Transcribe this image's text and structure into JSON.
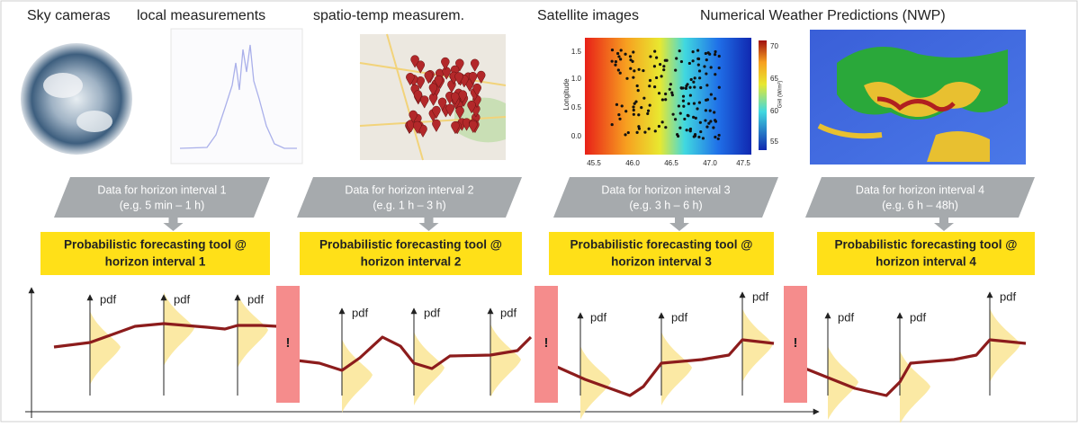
{
  "sources": [
    "Sky cameras",
    "local measurements",
    "spatio-temp measurem.",
    "Satellite images",
    "Numerical Weather Predictions (NWP)"
  ],
  "satellite": {
    "y_label": "Longitude",
    "x_ticks": [
      "45.5",
      "46.0",
      "46.5",
      "47.0",
      "47.5"
    ],
    "y_ticks": [
      "0.0",
      "0.5",
      "1.0",
      "1.5"
    ],
    "colorbar_ticks": [
      "55",
      "60",
      "65",
      "70"
    ],
    "colorbar_label": "GHI (W/m²)"
  },
  "data_boxes": [
    {
      "line1": "Data for horizon interval 1",
      "line2": "(e.g. 5 min – 1 h)"
    },
    {
      "line1": "Data for horizon interval 2",
      "line2": "(e.g. 1 h – 3 h)"
    },
    {
      "line1": "Data for horizon interval 3",
      "line2": "(e.g. 3 h – 6 h)"
    },
    {
      "line1": "Data for horizon interval 4",
      "line2": "(e.g. 6 h – 48h)"
    }
  ],
  "tool_boxes": [
    {
      "line1": "Probabilistic forecasting tool @",
      "line2": "horizon interval 1"
    },
    {
      "line1": "Probabilistic forecasting tool @",
      "line2": "horizon interval 2"
    },
    {
      "line1": "Probabilistic forecasting tool @",
      "line2": "horizon interval 3"
    },
    {
      "line1": "Probabilistic forecasting tool @",
      "line2": "horizon interval 4"
    }
  ],
  "panels": [
    {
      "pdf_labels": [
        "pdf",
        "pdf",
        "pdf"
      ]
    },
    {
      "pdf_labels": [
        "pdf",
        "pdf",
        "pdf"
      ]
    },
    {
      "pdf_labels": [
        "pdf",
        "pdf",
        "pdf"
      ]
    },
    {
      "pdf_labels": [
        "pdf",
        "pdf",
        "pdf"
      ]
    }
  ],
  "alerts": [
    "!",
    "!",
    "!"
  ]
}
